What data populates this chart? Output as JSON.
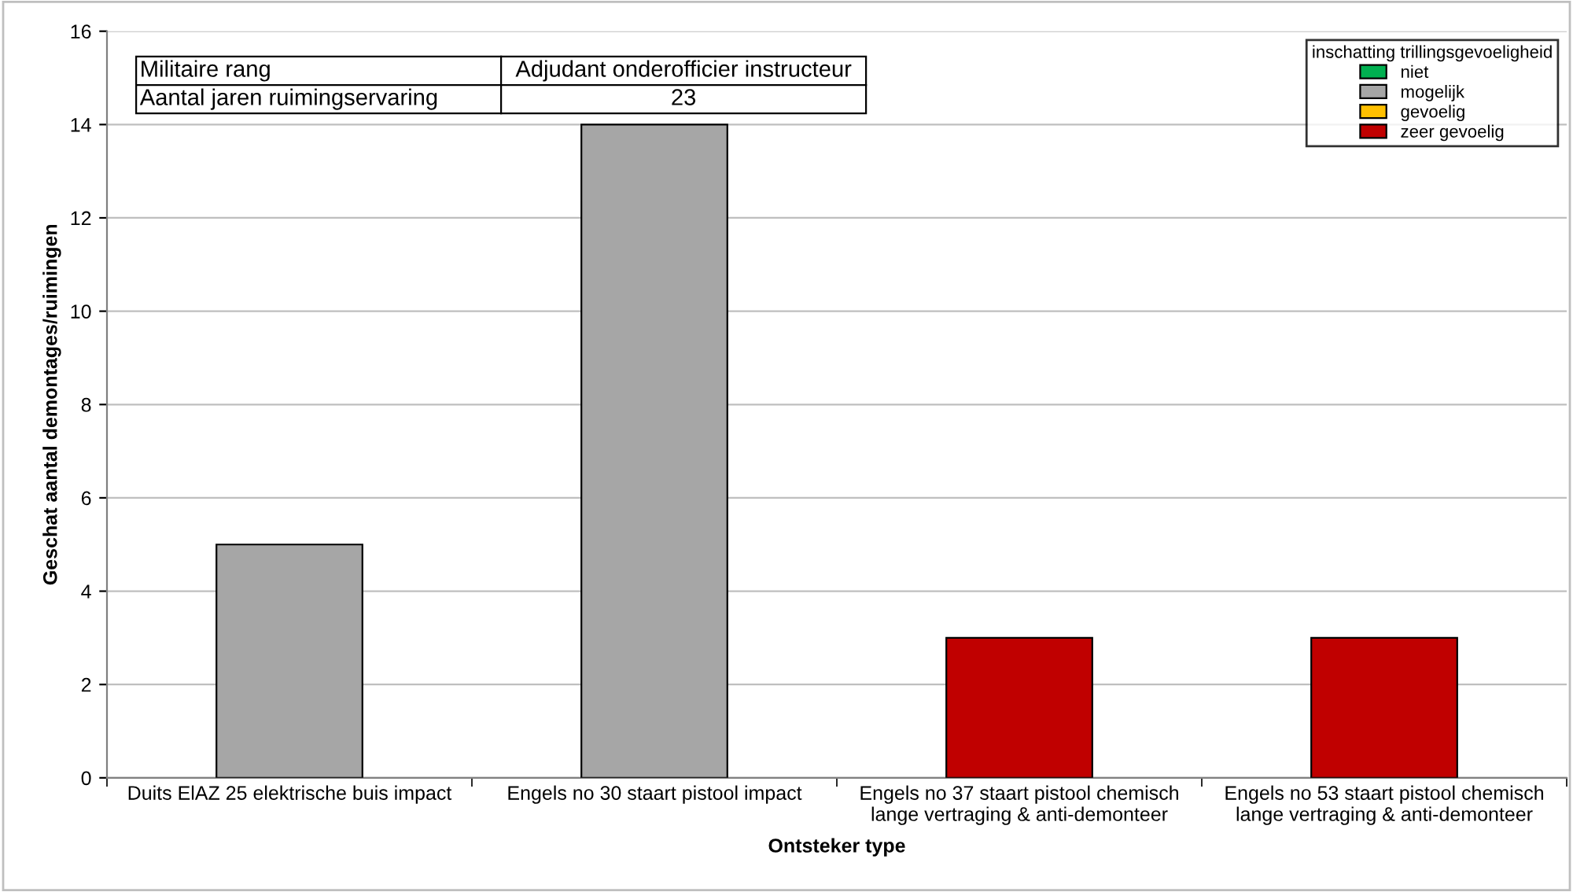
{
  "chart_data": {
    "type": "bar",
    "xlabel": "Ontsteker type",
    "ylabel": "Geschat aantal demontages/ruimingen",
    "categories": [
      "Duits ElAZ 25 elektrische buis impact",
      "Engels no 30 staart pistool impact",
      "Engels no 37 staart pistool chemisch lange vertraging & anti-demonteer",
      "Engels no 53 staart pistool chemisch lange vertraging & anti-demonteer"
    ],
    "series": [
      {
        "name": "niet",
        "color": "#00b050",
        "values": [
          null,
          null,
          null,
          null
        ]
      },
      {
        "name": "mogelijk",
        "color": "#a6a6a6",
        "values": [
          5,
          14,
          null,
          null
        ]
      },
      {
        "name": "gevoelig",
        "color": "#ffc000",
        "values": [
          null,
          null,
          null,
          null
        ]
      },
      {
        "name": "zeer gevoelig",
        "color": "#c00000",
        "values": [
          null,
          null,
          3,
          3
        ]
      }
    ],
    "legend_title": "inschatting trillingsgevoeligheid",
    "legend": "top right",
    "annotations": [
      "Militaire rang",
      "Adjudant onderofficier instructeur",
      "Aantal jaren ruimingservaring",
      "23"
    ],
    "ylim": [
      0,
      16
    ],
    "yticks": [
      0,
      2,
      4,
      6,
      8,
      10,
      12,
      14,
      16
    ],
    "grid": "y"
  }
}
